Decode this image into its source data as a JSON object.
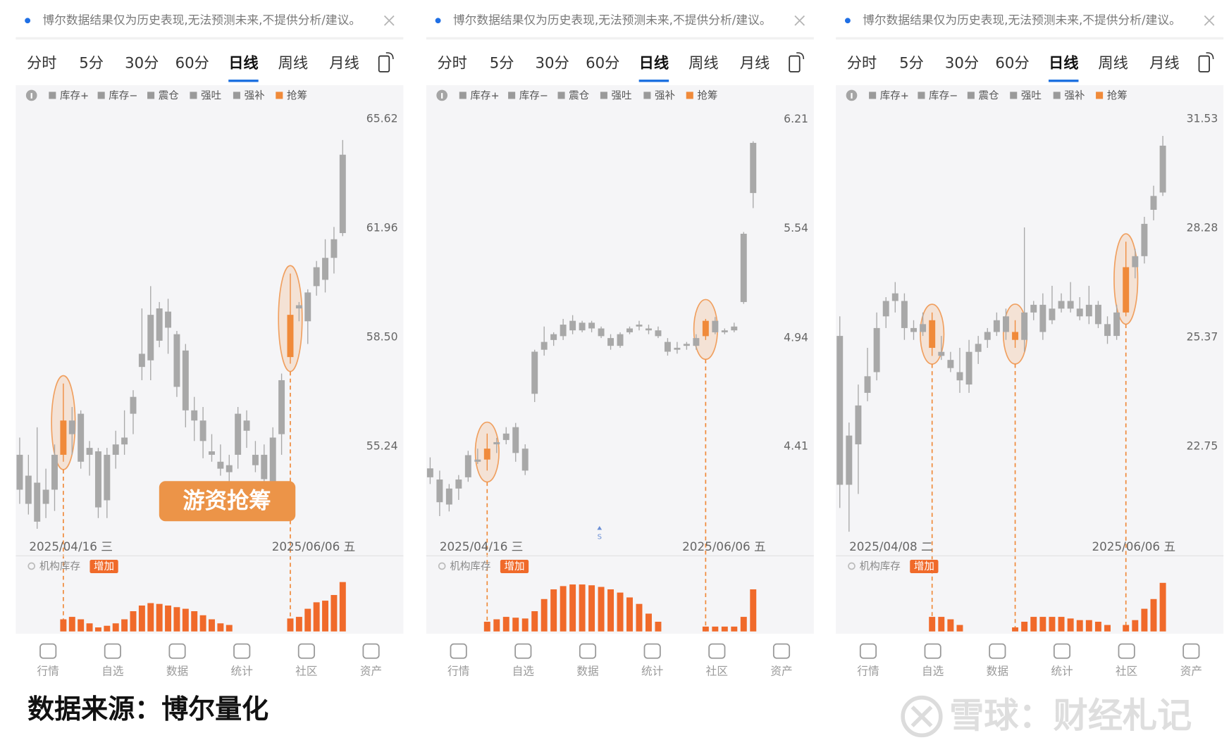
{
  "panels": [
    {
      "notice": "博尔数据结果仅为历史表现,无法预测未来,不提供分析/建议。",
      "tabs": [
        "分时",
        "5分",
        "30分",
        "60分",
        "日线",
        "周线",
        "月线"
      ],
      "active_tab": 4,
      "legend": [
        {
          "name": "库存+",
          "color": "#9a9a9a"
        },
        {
          "name": "库存−",
          "color": "#9a9a9a"
        },
        {
          "name": "震仓",
          "color": "#9a9a9a"
        },
        {
          "name": "强吐",
          "color": "#9a9a9a"
        },
        {
          "name": "强补",
          "color": "#9a9a9a"
        },
        {
          "name": "抢筹",
          "color": "#f08a3a"
        }
      ],
      "chart": {
        "log_scale": true,
        "ylim": [
          52.5,
          65.92
        ],
        "yticks": [
          65.62,
          61.96,
          {
            "value": 58.5,
            "label": "58.50"
          },
          55.24
        ],
        "candles": [
          [
            55.0,
            55.5,
            53.6,
            54.0
          ],
          [
            54.4,
            55.0,
            53.3,
            53.6
          ],
          [
            54.2,
            55.8,
            52.9,
            53.1
          ],
          [
            54.0,
            54.6,
            53.2,
            53.6
          ],
          [
            54.0,
            55.3,
            53.4,
            55.0
          ],
          [
            55.0,
            57.1,
            54.8,
            56.0
          ],
          [
            56.0,
            56.4,
            55.0,
            55.6
          ],
          [
            56.2,
            56.3,
            54.6,
            54.8
          ],
          [
            55.2,
            55.4,
            54.4,
            55.0
          ],
          [
            55.1,
            55.2,
            53.2,
            53.5
          ],
          [
            55.0,
            55.2,
            53.2,
            53.7
          ],
          [
            55.0,
            55.7,
            54.6,
            55.3
          ],
          [
            55.3,
            56.3,
            55.0,
            55.5
          ],
          [
            56.2,
            56.9,
            55.6,
            56.7
          ],
          [
            57.6,
            59.4,
            57.2,
            58.0
          ],
          [
            59.2,
            60.1,
            57.2,
            57.8
          ],
          [
            59.4,
            59.6,
            58.2,
            58.4
          ],
          [
            59.3,
            59.7,
            58.0,
            58.8
          ],
          [
            58.6,
            58.7,
            56.7,
            57.0
          ],
          [
            58.1,
            58.3,
            55.8,
            56.3
          ],
          [
            56.3,
            56.7,
            55.4,
            56.0
          ],
          [
            56.0,
            56.4,
            54.9,
            55.4
          ],
          [
            55.0,
            55.6,
            54.8,
            55.1
          ],
          [
            54.8,
            55.3,
            54.4,
            54.6
          ],
          [
            54.5,
            55.0,
            54.2,
            54.7
          ],
          [
            56.2,
            56.4,
            54.6,
            55.0
          ],
          [
            56.0,
            56.3,
            55.2,
            55.7
          ],
          [
            55.0,
            55.4,
            54.5,
            54.7
          ],
          [
            55.0,
            55.3,
            54.0,
            54.3
          ],
          [
            55.5,
            55.8,
            53.9,
            54.1
          ],
          [
            55.6,
            57.4,
            55.0,
            57.2
          ],
          [
            57.9,
            60.5,
            57.7,
            59.2
          ],
          [
            59.4,
            59.6,
            59.0,
            59.5
          ],
          [
            59.0,
            60.0,
            58.3,
            59.9
          ],
          [
            60.1,
            60.9,
            59.8,
            60.7
          ],
          [
            60.3,
            61.6,
            59.9,
            61.0
          ],
          [
            61.0,
            62.0,
            60.5,
            61.6
          ],
          [
            61.8,
            64.9,
            61.7,
            64.4
          ]
        ],
        "highlight": [
          5,
          31
        ],
        "volume": [
          0,
          0,
          0,
          0,
          0,
          15,
          18,
          15,
          10,
          5,
          7,
          10,
          15,
          25,
          32,
          35,
          34,
          32,
          30,
          28,
          25,
          20,
          15,
          10,
          8,
          0,
          0,
          0,
          0,
          0,
          0,
          16,
          18,
          28,
          36,
          38,
          45,
          61
        ],
        "vlim": [
          0,
          70
        ],
        "date_start": "2025/04/16 三",
        "date_end": "2025/06/06 五",
        "volume_label": "机构库存",
        "volume_tag": "增加",
        "annotation": "游资抢筹"
      },
      "nav": [
        "行情",
        "自选",
        "数据",
        "统计",
        "社区",
        "资产"
      ]
    },
    {
      "notice": "博尔数据结果仅为历史表现,无法预测未来,不提供分析/建议。",
      "tabs": [
        "分时",
        "5分",
        "30分",
        "60分",
        "日线",
        "周线",
        "月线"
      ],
      "active_tab": 4,
      "legend": [
        {
          "name": "库存+",
          "color": "#9a9a9a"
        },
        {
          "name": "库存−",
          "color": "#9a9a9a"
        },
        {
          "name": "震仓",
          "color": "#9a9a9a"
        },
        {
          "name": "强吐",
          "color": "#9a9a9a"
        },
        {
          "name": "强补",
          "color": "#9a9a9a"
        },
        {
          "name": "抢筹",
          "color": "#f08a3a"
        }
      ],
      "chart": {
        "log_scale": true,
        "ylim": [
          3.985,
          6.27
        ],
        "yticks": [
          6.21,
          5.54,
          4.94,
          4.41
        ],
        "candles": [
          [
            4.31,
            4.36,
            4.24,
            4.27
          ],
          [
            4.26,
            4.3,
            4.1,
            4.16
          ],
          [
            4.22,
            4.24,
            4.12,
            4.15
          ],
          [
            4.22,
            4.28,
            4.17,
            4.26
          ],
          [
            4.27,
            4.39,
            4.25,
            4.37
          ],
          [
            4.34,
            4.4,
            4.33,
            4.35
          ],
          [
            4.35,
            4.47,
            4.3,
            4.4
          ],
          [
            4.42,
            4.45,
            4.38,
            4.43
          ],
          [
            4.47,
            4.5,
            4.42,
            4.44
          ],
          [
            4.5,
            4.52,
            4.34,
            4.38
          ],
          [
            4.4,
            4.42,
            4.28,
            4.3
          ],
          [
            4.66,
            4.88,
            4.62,
            4.87
          ],
          [
            4.88,
            5.0,
            4.85,
            4.92
          ],
          [
            4.93,
            4.97,
            4.9,
            4.96
          ],
          [
            4.95,
            5.04,
            4.93,
            5.01
          ],
          [
            5.03,
            5.06,
            4.96,
            4.98
          ],
          [
            4.98,
            5.03,
            4.97,
            5.02
          ],
          [
            5.02,
            5.03,
            4.97,
            4.99
          ],
          [
            4.99,
            5.0,
            4.94,
            4.95
          ],
          [
            4.94,
            4.96,
            4.88,
            4.9
          ],
          [
            4.9,
            4.97,
            4.89,
            4.96
          ],
          [
            4.97,
            5.0,
            4.96,
            4.99
          ],
          [
            5.0,
            5.03,
            4.98,
            5.01
          ],
          [
            4.99,
            5.01,
            4.96,
            4.98
          ],
          [
            4.98,
            5.0,
            4.94,
            4.95
          ],
          [
            4.92,
            4.94,
            4.85,
            4.87
          ],
          [
            4.89,
            4.92,
            4.86,
            4.88
          ],
          [
            4.9,
            4.92,
            4.88,
            4.91
          ],
          [
            4.9,
            4.96,
            4.88,
            4.94
          ],
          [
            4.95,
            5.04,
            4.93,
            5.03
          ],
          [
            5.03,
            5.05,
            4.96,
            4.97
          ],
          [
            4.97,
            4.99,
            4.96,
            4.98
          ],
          [
            4.98,
            5.02,
            4.97,
            5.0
          ],
          [
            5.13,
            5.52,
            5.12,
            5.51
          ],
          [
            5.75,
            6.07,
            5.66,
            6.06
          ]
        ],
        "highlight": [
          6,
          29
        ],
        "volume": [
          0,
          0,
          0,
          0,
          0,
          0,
          12,
          15,
          18,
          17,
          16,
          25,
          40,
          52,
          56,
          58,
          58,
          57,
          55,
          52,
          48,
          42,
          34,
          22,
          12,
          0,
          0,
          0,
          0,
          6,
          6,
          6,
          6,
          18,
          52
        ],
        "vlim": [
          0,
          70
        ],
        "date_start": "2025/04/16 三",
        "date_end": "2025/06/06 五",
        "volume_label": "机构库存",
        "volume_tag": "增加",
        "marker": "S"
      },
      "nav": [
        "行情",
        "自选",
        "数据",
        "统计",
        "社区",
        "资产"
      ]
    },
    {
      "notice": "博尔数据结果仅为历史表现,无法预测未来,不提供分析/建议。",
      "tabs": [
        "分时",
        "5分",
        "30分",
        "60分",
        "日线",
        "周线",
        "月线"
      ],
      "active_tab": 4,
      "legend": [
        {
          "name": "库存+",
          "color": "#9a9a9a"
        },
        {
          "name": "库存−",
          "color": "#9a9a9a"
        },
        {
          "name": "震仓",
          "color": "#9a9a9a"
        },
        {
          "name": "强吐",
          "color": "#9a9a9a"
        },
        {
          "name": "强补",
          "color": "#9a9a9a"
        },
        {
          "name": "抢筹",
          "color": "#f08a3a"
        }
      ],
      "chart": {
        "log_scale": true,
        "ylim": [
          20.66,
          31.8
        ],
        "yticks": [
          31.53,
          28.28,
          25.37,
          22.75
        ],
        "candles": [
          [
            25.4,
            25.9,
            21.4,
            21.9
          ],
          [
            23.0,
            23.3,
            20.9,
            21.9
          ],
          [
            22.8,
            24.2,
            21.7,
            23.7
          ],
          [
            24.0,
            25.1,
            23.8,
            24.4
          ],
          [
            24.5,
            26.0,
            24.3,
            25.6
          ],
          [
            25.9,
            26.4,
            25.6,
            26.3
          ],
          [
            26.3,
            26.8,
            26.0,
            26.5
          ],
          [
            26.3,
            26.5,
            25.3,
            25.6
          ],
          [
            25.6,
            25.8,
            25.3,
            25.5
          ],
          [
            25.5,
            26.0,
            25.4,
            25.7
          ],
          [
            25.8,
            26.0,
            24.9,
            25.1
          ],
          [
            25.0,
            25.4,
            24.8,
            24.9
          ],
          [
            24.8,
            25.0,
            24.5,
            24.6
          ],
          [
            24.5,
            25.1,
            24.0,
            24.3
          ],
          [
            24.2,
            25.3,
            24.0,
            25.0
          ],
          [
            25.0,
            25.4,
            24.7,
            25.2
          ],
          [
            25.3,
            25.6,
            25.1,
            25.5
          ],
          [
            25.5,
            26.0,
            25.4,
            25.8
          ],
          [
            25.9,
            26.1,
            25.3,
            25.5
          ],
          [
            25.5,
            25.8,
            25.1,
            25.3
          ],
          [
            25.3,
            28.3,
            25.0,
            26.0
          ],
          [
            26.0,
            26.3,
            25.8,
            26.2
          ],
          [
            26.2,
            26.5,
            25.3,
            25.5
          ],
          [
            25.8,
            26.7,
            25.7,
            26.1
          ],
          [
            26.1,
            26.5,
            26.0,
            26.3
          ],
          [
            26.3,
            26.8,
            26.0,
            26.1
          ],
          [
            26.1,
            26.4,
            25.8,
            25.9
          ],
          [
            25.9,
            26.7,
            25.7,
            26.2
          ],
          [
            26.2,
            26.3,
            25.6,
            25.7
          ],
          [
            25.7,
            25.9,
            25.2,
            25.4
          ],
          [
            25.4,
            26.2,
            25.3,
            26.0
          ],
          [
            26.0,
            27.9,
            25.9,
            27.2
          ],
          [
            27.2,
            27.7,
            26.9,
            27.5
          ],
          [
            27.5,
            28.6,
            27.3,
            28.4
          ],
          [
            28.8,
            29.5,
            28.5,
            29.2
          ],
          [
            29.3,
            31.0,
            29.2,
            30.7
          ]
        ],
        "highlight": [
          10,
          19,
          31
        ],
        "volume": [
          0,
          0,
          0,
          0,
          0,
          0,
          0,
          0,
          0,
          0,
          18,
          18,
          15,
          8,
          0,
          0,
          0,
          0,
          0,
          5,
          12,
          18,
          18,
          18,
          18,
          16,
          14,
          14,
          12,
          8,
          0,
          8,
          14,
          28,
          40,
          60
        ],
        "vlim": [
          0,
          70
        ],
        "date_start": "2025/04/08 二",
        "date_end": "2025/06/06 五",
        "volume_label": "机构库存",
        "volume_tag": "增加"
      },
      "nav": [
        "行情",
        "自选",
        "数据",
        "统计",
        "社区",
        "资产"
      ]
    }
  ],
  "footer": {
    "source": "数据来源：博尔量化",
    "watermark": "雪球：财经札记"
  }
}
